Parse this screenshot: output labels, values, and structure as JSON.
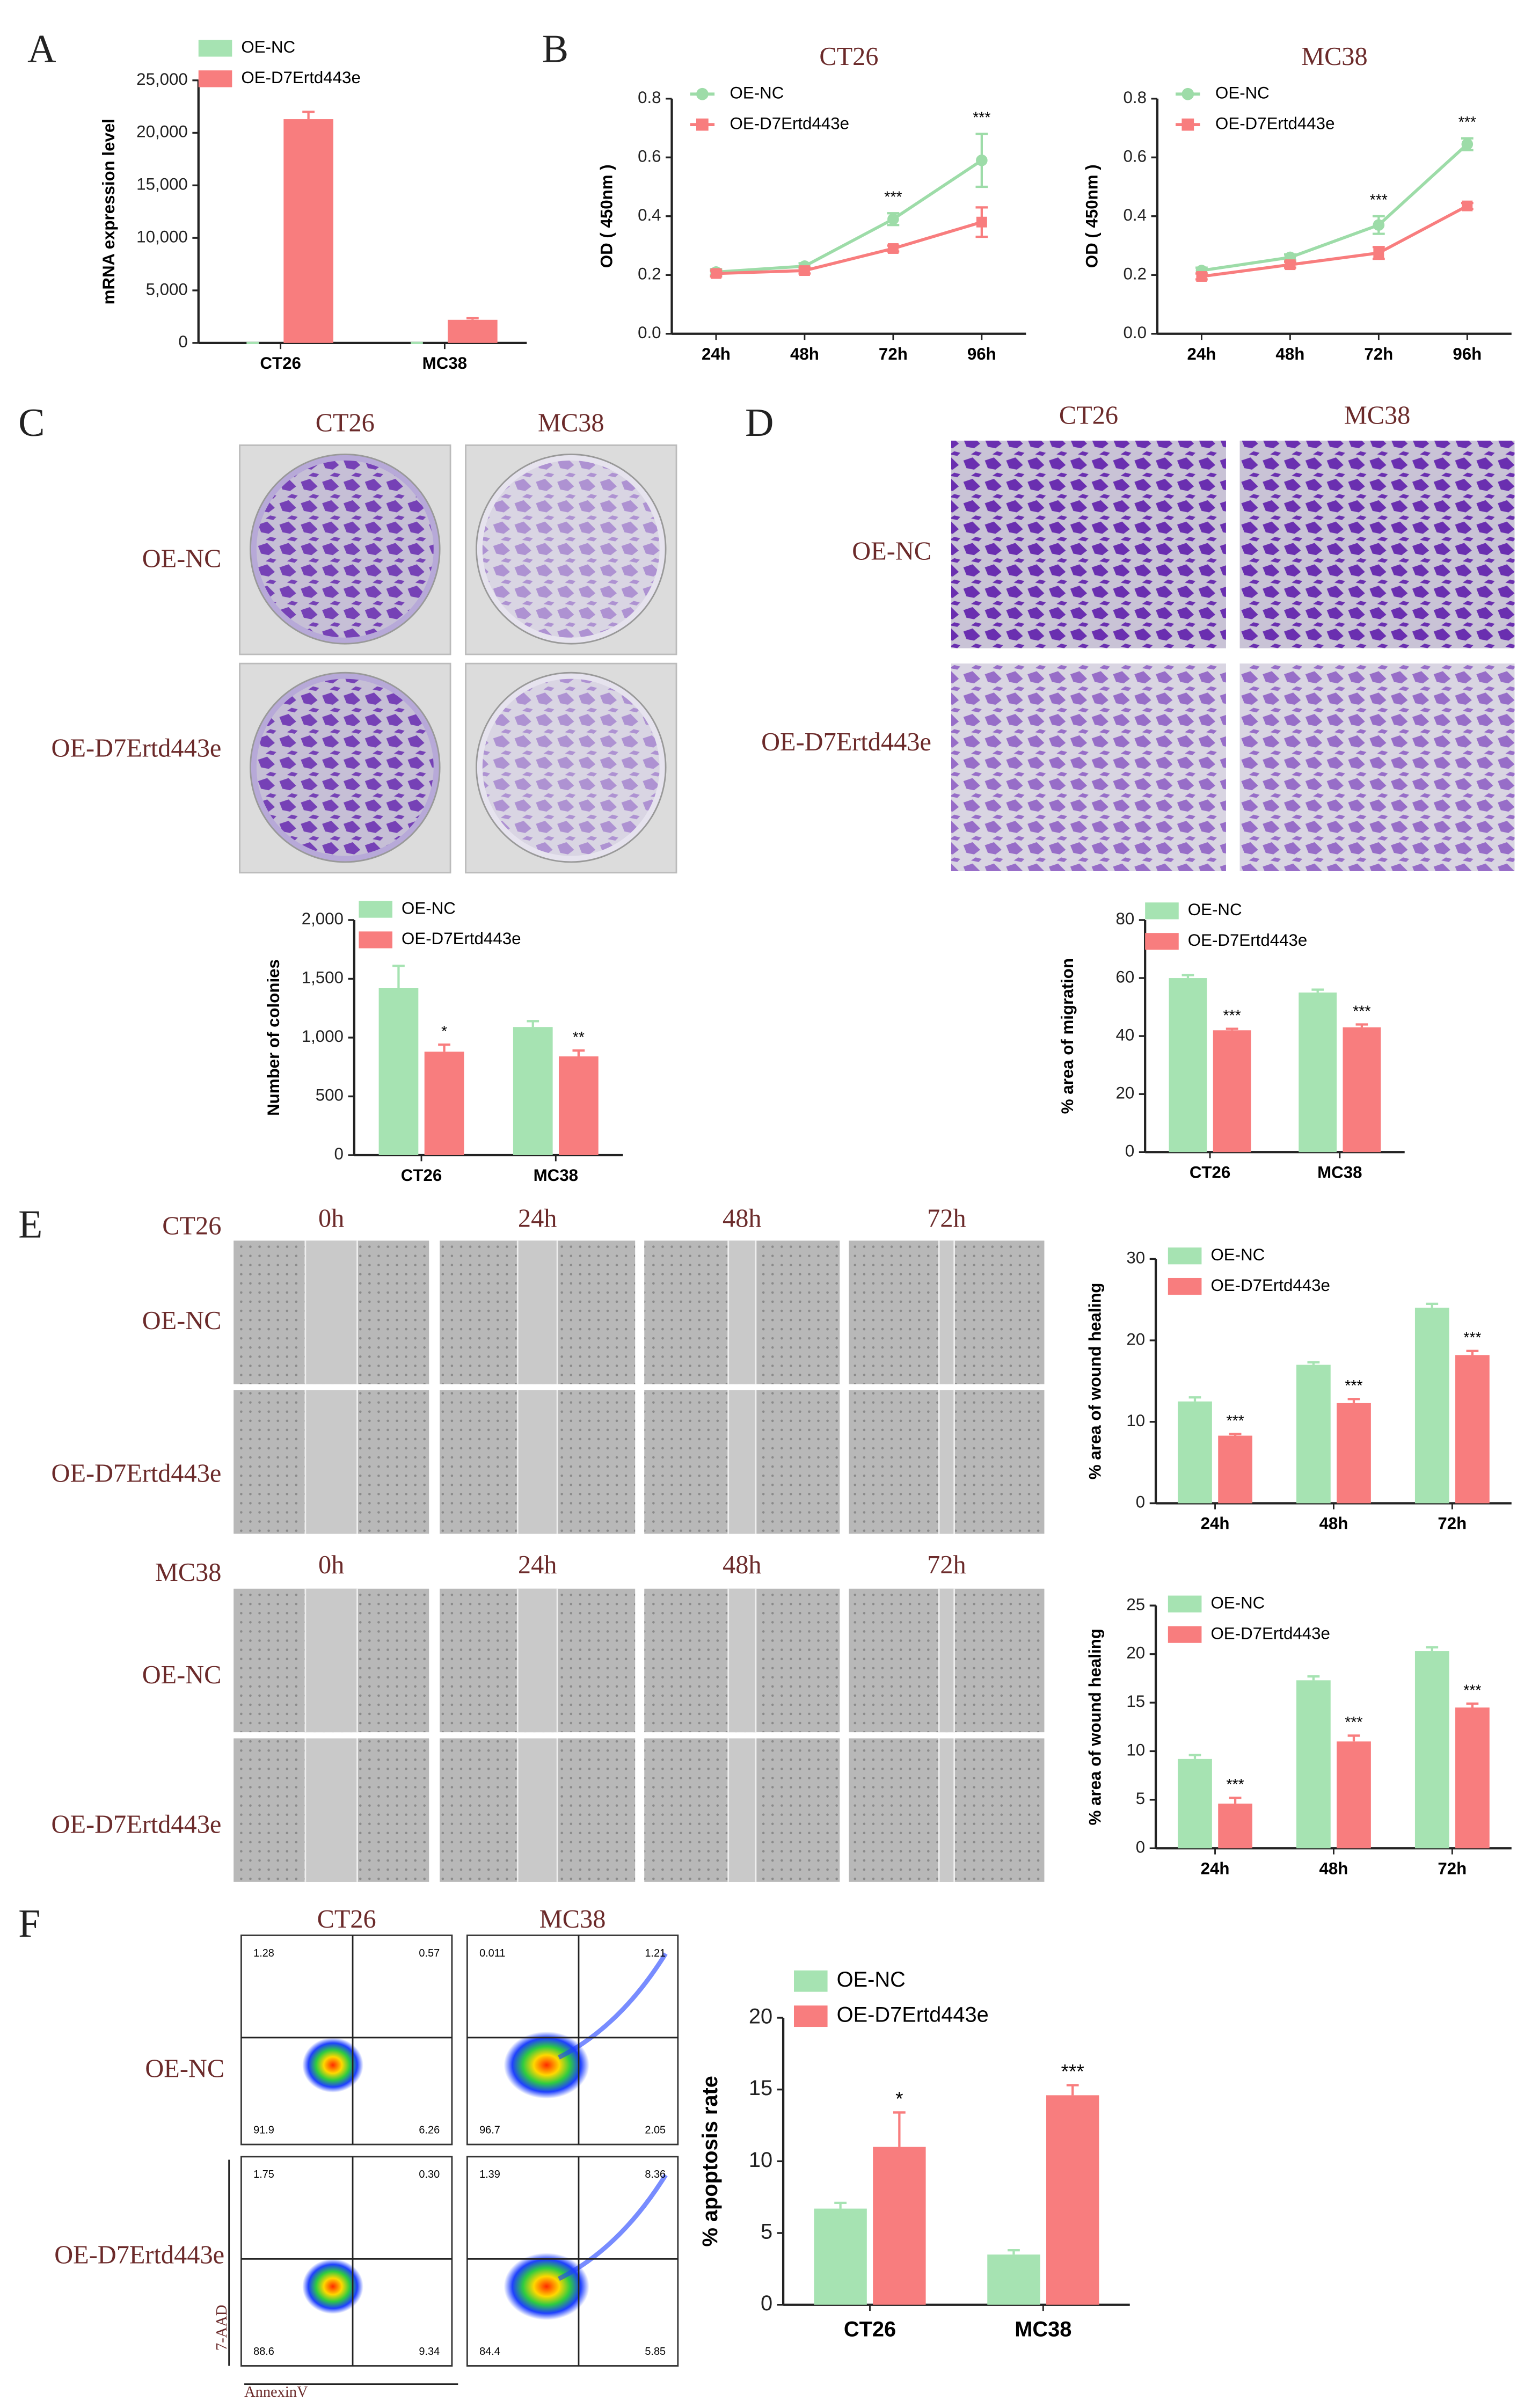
{
  "figure": {
    "panel_labels": [
      "A",
      "B",
      "C",
      "D",
      "E",
      "F"
    ],
    "colony": {
      "columns": [
        "CT26",
        "MC38"
      ],
      "rows": [
        "OE-NC",
        "OE-D7Ertd443e"
      ]
    },
    "transwell": {
      "columns": [
        "CT26",
        "MC38"
      ],
      "rows": [
        "OE-NC",
        "OE-D7Ertd443e"
      ]
    },
    "wound": {
      "groups": [
        {
          "name": "CT26",
          "times": [
            "0h",
            "24h",
            "48h",
            "72h"
          ],
          "rows": [
            "OE-NC",
            "OE-D7Ertd443e"
          ]
        },
        {
          "name": "MC38",
          "times": [
            "0h",
            "24h",
            "48h",
            "72h"
          ],
          "rows": [
            "OE-NC",
            "OE-D7Ertd443e"
          ]
        }
      ]
    },
    "flow": {
      "columns": [
        "CT26",
        "MC38"
      ],
      "rows": [
        "OE-NC",
        "OE-D7Ertd443e"
      ],
      "quadrants": [
        [
          "1.28",
          "0.57",
          "91.9",
          "6.26"
        ],
        [
          "0.011",
          "1.21",
          "96.7",
          "2.05"
        ],
        [
          "1.75",
          "0.30",
          "88.6",
          "9.34"
        ],
        [
          "1.39",
          "8.36",
          "84.4",
          "5.85"
        ]
      ],
      "y_axis": "7-AAD",
      "x_axis": "AnnexinV"
    }
  },
  "chart_data": [
    {
      "type": "bar",
      "y_label": "mRNA expression level",
      "categories": [
        "CT26",
        "MC38"
      ],
      "series": [
        {
          "name": "OE-NC",
          "color": "#a6e3b2",
          "values": [
            1,
            1
          ],
          "errors": [
            0,
            0
          ]
        },
        {
          "name": "OE-D7Ertd443e",
          "color": "#f87d7e",
          "values": [
            21300,
            2200
          ],
          "errors": [
            700,
            150
          ]
        }
      ],
      "ylim": [
        0,
        25000
      ],
      "yticks": [
        0,
        {
          "value": 5000,
          "label": "5,000"
        },
        {
          "value": 10000,
          "label": "10,000"
        },
        {
          "value": 15000,
          "label": "15,000"
        },
        {
          "value": 20000,
          "label": "20,000"
        },
        {
          "value": 25000,
          "label": "25,000"
        }
      ]
    },
    {
      "type": "line",
      "title": "CT26",
      "y_label": "OD ( 450nm )",
      "categories": [
        "24h",
        "48h",
        "72h",
        "96h"
      ],
      "series": [
        {
          "name": "OE-NC",
          "color": "#9ddca8",
          "values": [
            0.21,
            0.23,
            0.39,
            0.59
          ],
          "errors": [
            0.01,
            0.01,
            0.02,
            0.09
          ]
        },
        {
          "name": "OE-D7Ertd443e",
          "color": "#f87d7e",
          "values": [
            0.205,
            0.215,
            0.29,
            0.38
          ],
          "errors": [
            0.01,
            0.01,
            0.01,
            0.05
          ]
        }
      ],
      "significance": [
        null,
        null,
        "***",
        "***"
      ],
      "ylim": [
        0,
        0.8
      ],
      "yticks": [
        {
          "value": 0,
          "label": "0.0"
        },
        0.2,
        0.4,
        0.6,
        0.8
      ]
    },
    {
      "type": "line",
      "title": "MC38",
      "y_label": "OD ( 450nm )",
      "categories": [
        "24h",
        "48h",
        "72h",
        "96h"
      ],
      "series": [
        {
          "name": "OE-NC",
          "color": "#9ddca8",
          "values": [
            0.215,
            0.26,
            0.37,
            0.645
          ],
          "errors": [
            0.01,
            0.01,
            0.03,
            0.02
          ]
        },
        {
          "name": "OE-D7Ertd443e",
          "color": "#f87d7e",
          "values": [
            0.195,
            0.235,
            0.275,
            0.435
          ],
          "errors": [
            0.01,
            0.01,
            0.02,
            0.01
          ]
        }
      ],
      "significance": [
        null,
        null,
        "***",
        "***"
      ],
      "ylim": [
        0,
        0.8
      ],
      "yticks": [
        {
          "value": 0,
          "label": "0.0"
        },
        0.2,
        0.4,
        0.6,
        0.8
      ]
    },
    {
      "type": "bar",
      "y_label": "Number of colonies",
      "categories": [
        "CT26",
        "MC38"
      ],
      "series": [
        {
          "name": "OE-NC",
          "color": "#a6e3b2",
          "values": [
            1420,
            1090
          ],
          "errors": [
            190,
            50
          ]
        },
        {
          "name": "OE-D7Ertd443e",
          "color": "#f87d7e",
          "values": [
            880,
            840
          ],
          "errors": [
            60,
            50
          ],
          "significance": [
            "*",
            "**"
          ]
        }
      ],
      "ylim": [
        0,
        2000
      ],
      "yticks": [
        0,
        500,
        {
          "value": 1000,
          "label": "1,000"
        },
        {
          "value": 1500,
          "label": "1,500"
        },
        {
          "value": 2000,
          "label": "2,000"
        }
      ]
    },
    {
      "type": "bar",
      "y_label": "% area of migration",
      "categories": [
        "CT26",
        "MC38"
      ],
      "series": [
        {
          "name": "OE-NC",
          "color": "#a6e3b2",
          "values": [
            60,
            55
          ],
          "errors": [
            1,
            1
          ]
        },
        {
          "name": "OE-D7Ertd443e",
          "color": "#f87d7e",
          "values": [
            42,
            43
          ],
          "errors": [
            0.5,
            1
          ],
          "significance": [
            "***",
            "***"
          ]
        }
      ],
      "ylim": [
        0,
        80
      ],
      "yticks": [
        0,
        20,
        40,
        60,
        80
      ]
    },
    {
      "type": "bar",
      "y_label": "% area of wound healing",
      "categories": [
        "24h",
        "48h",
        "72h"
      ],
      "series": [
        {
          "name": "OE-NC",
          "color": "#a6e3b2",
          "values": [
            12.5,
            17,
            24
          ],
          "errors": [
            0.5,
            0.3,
            0.5
          ]
        },
        {
          "name": "OE-D7Ertd443e",
          "color": "#f87d7e",
          "values": [
            8.3,
            12.3,
            18.2
          ],
          "errors": [
            0.2,
            0.5,
            0.5
          ],
          "significance": [
            "***",
            "***",
            "***"
          ]
        }
      ],
      "ylim": [
        0,
        30
      ],
      "yticks": [
        0,
        10,
        20,
        30
      ]
    },
    {
      "type": "bar",
      "y_label": "% area of wound healing",
      "categories": [
        "24h",
        "48h",
        "72h"
      ],
      "series": [
        {
          "name": "OE-NC",
          "color": "#a6e3b2",
          "values": [
            9.2,
            17.3,
            20.3
          ],
          "errors": [
            0.4,
            0.4,
            0.4
          ]
        },
        {
          "name": "OE-D7Ertd443e",
          "color": "#f87d7e",
          "values": [
            4.6,
            11,
            14.5
          ],
          "errors": [
            0.6,
            0.6,
            0.4
          ],
          "significance": [
            "***",
            "***",
            "***"
          ]
        }
      ],
      "ylim": [
        0,
        25
      ],
      "yticks": [
        0,
        5,
        10,
        15,
        20,
        25
      ]
    },
    {
      "type": "bar",
      "y_label": "% apoptosis rate",
      "categories": [
        "CT26",
        "MC38"
      ],
      "series": [
        {
          "name": "OE-NC",
          "color": "#a6e3b2",
          "values": [
            6.7,
            3.5
          ],
          "errors": [
            0.4,
            0.3
          ]
        },
        {
          "name": "OE-D7Ertd443e",
          "color": "#f87d7e",
          "values": [
            11,
            14.6
          ],
          "errors": [
            2.4,
            0.7
          ],
          "significance": [
            "*",
            "***"
          ]
        }
      ],
      "ylim": [
        0,
        20
      ],
      "yticks": [
        0,
        5,
        10,
        15,
        20
      ]
    }
  ]
}
